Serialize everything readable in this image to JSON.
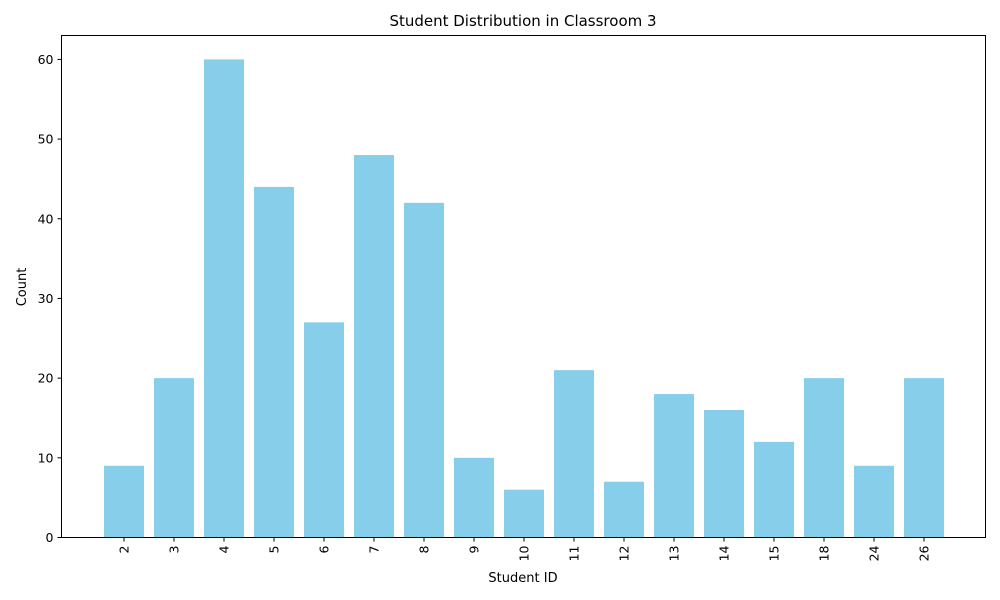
{
  "chart_data": {
    "type": "bar",
    "title": "Student Distribution in Classroom 3",
    "xlabel": "Student ID",
    "ylabel": "Count",
    "categories": [
      "2",
      "3",
      "4",
      "5",
      "6",
      "7",
      "8",
      "9",
      "10",
      "11",
      "12",
      "13",
      "14",
      "15",
      "18",
      "24",
      "26"
    ],
    "values": [
      9,
      20,
      60,
      44,
      27,
      48,
      42,
      10,
      6,
      21,
      7,
      18,
      16,
      12,
      20,
      9,
      20
    ],
    "ylim": [
      0,
      63
    ],
    "yticks": [
      "0",
      "10",
      "20",
      "30",
      "40",
      "50",
      "60"
    ],
    "bar_color": "#87ceeb",
    "grid": false,
    "xtick_rotation": "vertical"
  }
}
